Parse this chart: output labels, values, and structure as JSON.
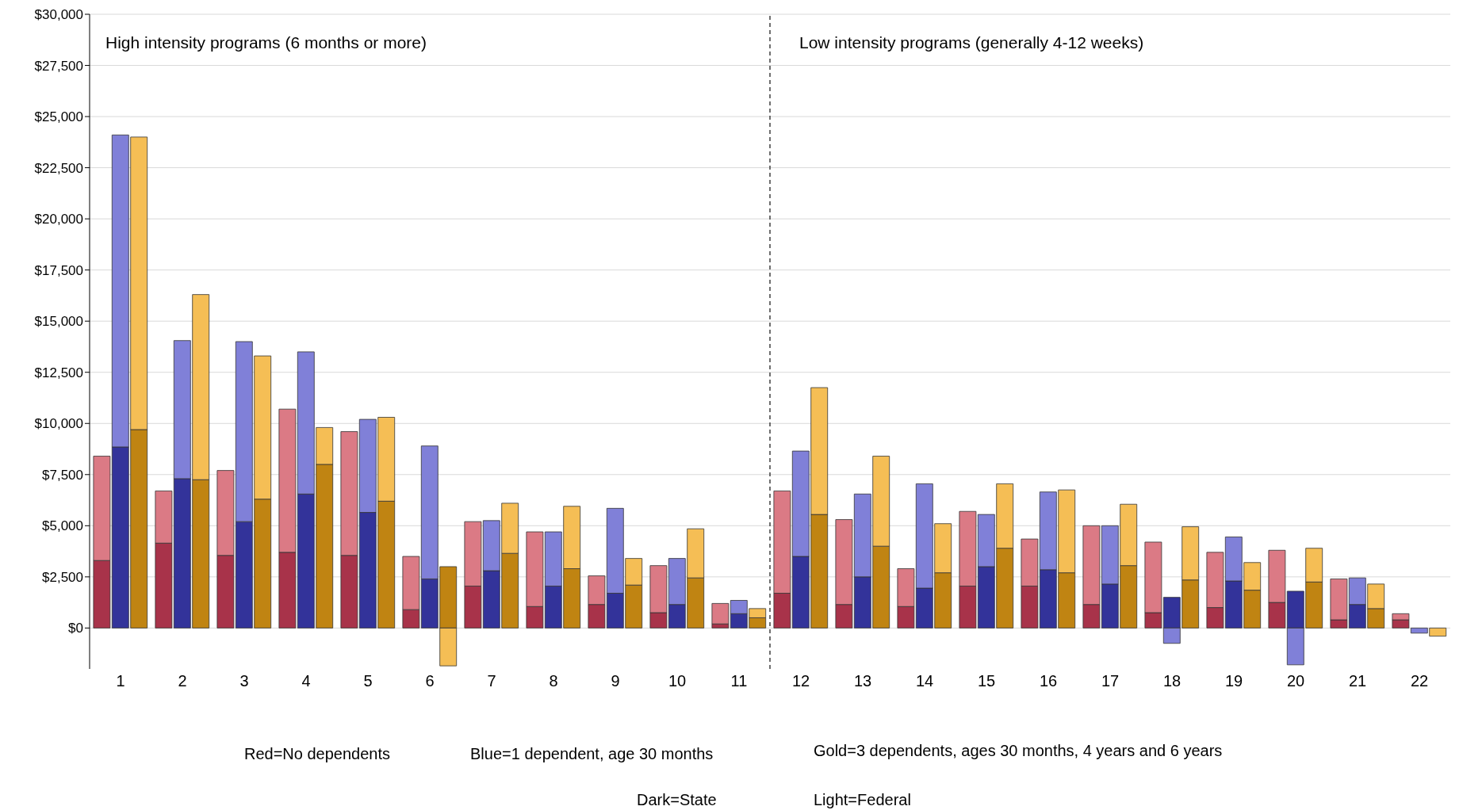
{
  "chart_data": {
    "type": "bar",
    "stacked": true,
    "x": [
      0.7,
      1,
      1.3,
      1.7,
      2,
      2.3,
      2.7,
      3,
      3.3,
      3.7,
      4,
      4.3,
      4.7,
      5,
      5.3,
      5.7,
      6,
      6.3,
      6.7,
      7,
      7.3,
      7.7,
      8,
      8.3,
      8.7,
      9,
      9.3,
      9.7,
      10,
      10.3,
      10.7,
      11,
      11.3,
      11.7,
      12,
      12.3,
      12.7,
      13,
      13.3,
      13.7,
      14,
      14.3,
      14.7,
      15,
      15.3,
      15.7,
      16,
      16.3,
      16.7,
      17,
      17.3,
      17.7,
      18,
      18.3,
      18.7,
      19,
      19.3,
      19.7,
      20,
      20.3,
      20.7,
      21,
      21.3,
      21.7,
      22,
      22.3
    ],
    "xlim": [
      0.5,
      22.5
    ],
    "xticks": [
      1,
      2,
      3,
      4,
      5,
      6,
      7,
      8,
      9,
      10,
      11,
      12,
      13,
      14,
      15,
      16,
      17,
      18,
      19,
      20,
      21,
      22
    ],
    "ylim": [
      -2000,
      30000
    ],
    "yticks": [
      {
        "value": 0,
        "label": "$0"
      },
      {
        "value": 2500,
        "label": "$2,500"
      },
      {
        "value": 5000,
        "label": "$5,000"
      },
      {
        "value": 7500,
        "label": "$7,500"
      },
      {
        "value": 10000,
        "label": "$10,000"
      },
      {
        "value": 12500,
        "label": "$12,500"
      },
      {
        "value": 15000,
        "label": "$15,000"
      },
      {
        "value": 17500,
        "label": "$17,500"
      },
      {
        "value": 20000,
        "label": "$20,000"
      },
      {
        "value": 22500,
        "label": "$22,500"
      },
      {
        "value": 25000,
        "label": "$25,000"
      },
      {
        "value": 27500,
        "label": "$27,500"
      },
      {
        "value": 30000,
        "label": "$30,000"
      }
    ],
    "grid": "y",
    "legend": false,
    "series": [
      {
        "values": [
          3300,
          8850,
          9700,
          4150,
          7300,
          7250,
          3550,
          5200,
          6300,
          3700,
          6550,
          8000,
          3550,
          5650,
          6200,
          900,
          2400,
          3000,
          2050,
          2800,
          3650,
          1050,
          2050,
          2900,
          1150,
          1700,
          2100,
          750,
          1150,
          2450,
          200,
          700,
          500,
          1700,
          3500,
          5550,
          1150,
          2500,
          4000,
          1050,
          1950,
          2700,
          2050,
          3000,
          3900,
          2050,
          2850,
          2700,
          1150,
          2150,
          3050,
          750,
          1500,
          2350,
          1000,
          2300,
          1850,
          1250,
          1800,
          2250,
          400,
          1150,
          950,
          400,
          0,
          0
        ],
        "colors": [
          "#a8334a",
          "#33339a",
          "#c08412",
          "#a8334a",
          "#33339a",
          "#c08412",
          "#a8334a",
          "#33339a",
          "#c08412",
          "#a8334a",
          "#33339a",
          "#c08412",
          "#a8334a",
          "#33339a",
          "#c08412",
          "#a8334a",
          "#33339a",
          "#c08412",
          "#a8334a",
          "#33339a",
          "#c08412",
          "#a8334a",
          "#33339a",
          "#c08412",
          "#a8334a",
          "#33339a",
          "#c08412",
          "#a8334a",
          "#33339a",
          "#c08412",
          "#a8334a",
          "#33339a",
          "#c08412",
          "#a8334a",
          "#33339a",
          "#c08412",
          "#a8334a",
          "#33339a",
          "#c08412",
          "#a8334a",
          "#33339a",
          "#c08412",
          "#a8334a",
          "#33339a",
          "#c08412",
          "#a8334a",
          "#33339a",
          "#c08412",
          "#a8334a",
          "#33339a",
          "#c08412",
          "#a8334a",
          "#33339a",
          "#c08412",
          "#a8334a",
          "#33339a",
          "#c08412",
          "#a8334a",
          "#33339a",
          "#c08412",
          "#a8334a",
          "#33339a",
          "#c08412",
          "#a8334a",
          "#33339a",
          "#c08412"
        ]
      },
      {
        "values": [
          5100,
          15250,
          14300,
          2550,
          6750,
          9050,
          4150,
          8800,
          7000,
          7000,
          6950,
          1800,
          6050,
          4550,
          4100,
          2600,
          6500,
          -1850,
          3150,
          2450,
          2450,
          3650,
          2650,
          3050,
          1400,
          4150,
          1300,
          2300,
          2250,
          2400,
          1000,
          650,
          450,
          5000,
          5150,
          6200,
          4150,
          4050,
          4400,
          1850,
          5100,
          2400,
          3650,
          2550,
          3150,
          2300,
          3800,
          4050,
          3850,
          2850,
          3000,
          3450,
          -750,
          2600,
          2700,
          2150,
          1350,
          2550,
          -1800,
          1650,
          2000,
          1300,
          1200,
          300,
          -250,
          -400
        ],
        "colors": [
          "#db7a85",
          "#8080d8",
          "#f5be55",
          "#db7a85",
          "#8080d8",
          "#f5be55",
          "#db7a85",
          "#8080d8",
          "#f5be55",
          "#db7a85",
          "#8080d8",
          "#f5be55",
          "#db7a85",
          "#8080d8",
          "#f5be55",
          "#db7a85",
          "#8080d8",
          "#f5be55",
          "#db7a85",
          "#8080d8",
          "#f5be55",
          "#db7a85",
          "#8080d8",
          "#f5be55",
          "#db7a85",
          "#8080d8",
          "#f5be55",
          "#db7a85",
          "#8080d8",
          "#f5be55",
          "#db7a85",
          "#8080d8",
          "#f5be55",
          "#db7a85",
          "#8080d8",
          "#f5be55",
          "#db7a85",
          "#8080d8",
          "#f5be55",
          "#db7a85",
          "#8080d8",
          "#f5be55",
          "#db7a85",
          "#8080d8",
          "#f5be55",
          "#db7a85",
          "#8080d8",
          "#f5be55",
          "#db7a85",
          "#8080d8",
          "#f5be55",
          "#db7a85",
          "#8080d8",
          "#f5be55",
          "#db7a85",
          "#8080d8",
          "#f5be55",
          "#db7a85",
          "#8080d8",
          "#f5be55",
          "#db7a85",
          "#8080d8",
          "#f5be55",
          "#db7a85",
          "#8080d8",
          "#f5be55"
        ]
      }
    ],
    "ref_lines": [
      {
        "axis": "x",
        "value": 11.5,
        "color": "#404040",
        "line_style": "dashed"
      }
    ],
    "annotations": [
      "High intensity programs (6 months or more)",
      "Low intensity programs (generally 4-12 weeks)",
      "Red=No dependents",
      "Blue=1 dependent, age 30 months",
      "Gold=3 dependents, ages 30 months, 4 years and 6 years",
      "Dark=State",
      "Light=Federal"
    ]
  }
}
